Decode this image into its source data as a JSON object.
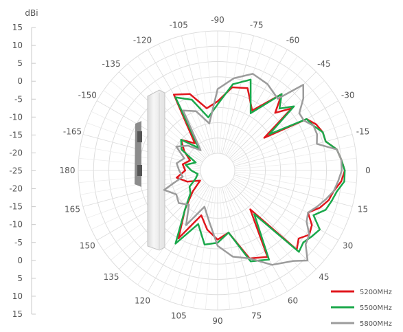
{
  "chart_data": {
    "type": "polar",
    "radial_axis": {
      "unit": "dBi",
      "tick_labels": [
        "15",
        "10",
        "5",
        "0",
        "-5",
        "-10",
        "-15",
        "-20",
        "-25",
        "-20",
        "-15",
        "-10",
        "-5",
        "0",
        "5",
        "10",
        "15"
      ],
      "range": [
        -25,
        15
      ],
      "step": 5
    },
    "angle_labels": [
      {
        "angle": -90,
        "label": "-90"
      },
      {
        "angle": -75,
        "label": "-75"
      },
      {
        "angle": -60,
        "label": "-60"
      },
      {
        "angle": -45,
        "label": "-45"
      },
      {
        "angle": -30,
        "label": "-30"
      },
      {
        "angle": -15,
        "label": "-15"
      },
      {
        "angle": 0,
        "label": "0"
      },
      {
        "angle": 15,
        "label": "15"
      },
      {
        "angle": 30,
        "label": "30"
      },
      {
        "angle": 45,
        "label": "45"
      },
      {
        "angle": 60,
        "label": "60"
      },
      {
        "angle": 75,
        "label": "75"
      },
      {
        "angle": 90,
        "label": "90"
      },
      {
        "angle": 105,
        "label": "105"
      },
      {
        "angle": 120,
        "label": "120"
      },
      {
        "angle": 135,
        "label": "135"
      },
      {
        "angle": 150,
        "label": "150"
      },
      {
        "angle": 165,
        "label": "165"
      },
      {
        "angle": 180,
        "label": "180"
      },
      {
        "angle": -165,
        "label": "-165"
      },
      {
        "angle": -150,
        "label": "-150"
      },
      {
        "angle": -135,
        "label": "-135"
      },
      {
        "angle": -120,
        "label": "-120"
      },
      {
        "angle": -105,
        "label": "-105"
      }
    ],
    "legend_position": "bottom-right",
    "grid": true,
    "series": [
      {
        "name": "5200MHz",
        "color": "#e0161c",
        "angles": [
          -180,
          -170,
          -160,
          -150,
          -140,
          -130,
          -120,
          -110,
          -100,
          -90,
          -80,
          -70,
          -60,
          -50,
          -45,
          -40,
          -35,
          -30,
          -25,
          -20,
          -15,
          -10,
          -5,
          0,
          5,
          10,
          15,
          20,
          25,
          30,
          35,
          40,
          45,
          50,
          60,
          70,
          80,
          90,
          100,
          110,
          120,
          130,
          140,
          150,
          160,
          170,
          180
        ],
        "values": [
          -20,
          -19,
          -21,
          -18,
          -15,
          -19,
          -2,
          -4,
          -10,
          -8,
          -3,
          -2,
          -8,
          2,
          -4,
          1,
          -12,
          3,
          5,
          6,
          6,
          9,
          10,
          11,
          10,
          8,
          7,
          5,
          2,
          5,
          6,
          4,
          6,
          -14,
          2,
          0,
          -10,
          -8,
          -11,
          -15,
          -5,
          -14,
          -20,
          -24,
          -20,
          -17,
          -20
        ]
      },
      {
        "name": "5500MHz",
        "color": "#1aa84b",
        "angles": [
          -180,
          -170,
          -160,
          -150,
          -140,
          -130,
          -120,
          -110,
          -100,
          -90,
          -80,
          -70,
          -60,
          -50,
          -45,
          -40,
          -35,
          -30,
          -25,
          -20,
          -15,
          -10,
          -5,
          0,
          5,
          10,
          15,
          20,
          25,
          30,
          35,
          40,
          45,
          50,
          60,
          70,
          80,
          90,
          100,
          110,
          120,
          130,
          140,
          150,
          160,
          170,
          180
        ],
        "values": [
          -22,
          -20,
          -23,
          -17,
          -15,
          -21,
          -3,
          -6,
          -13,
          -9,
          -2,
          1,
          -9,
          2,
          -2,
          2,
          -10,
          3,
          4,
          6,
          6,
          9,
          10,
          11,
          11,
          9,
          8,
          7,
          4,
          8,
          7,
          6,
          7,
          -12,
          3,
          1,
          -10,
          -7,
          -6,
          -12,
          -3,
          -14,
          -19,
          -20,
          -23,
          -24,
          -22
        ]
      },
      {
        "name": "5800MHz",
        "color": "#9c9c9c",
        "angles": [
          -180,
          -170,
          -160,
          -150,
          -140,
          -130,
          -120,
          -110,
          -100,
          -90,
          -80,
          -70,
          -60,
          -50,
          -45,
          -40,
          -35,
          -30,
          -25,
          -20,
          -15,
          -10,
          -5,
          0,
          5,
          10,
          15,
          20,
          25,
          30,
          35,
          40,
          45,
          50,
          60,
          70,
          80,
          90,
          100,
          110,
          120,
          130,
          140,
          150,
          160,
          170,
          180
        ],
        "values": [
          -18,
          -17,
          -19,
          -15,
          -18,
          -22,
          -8,
          -10,
          -15,
          -4,
          0,
          3,
          2,
          0,
          9,
          6,
          2,
          2,
          4,
          4,
          3,
          9,
          10,
          10,
          9,
          8,
          6,
          4,
          2,
          3,
          6,
          7,
          11,
          8,
          5,
          0,
          -2,
          -6,
          -14,
          -18,
          -10,
          -16,
          -14,
          -15,
          -12,
          -19,
          -18
        ]
      }
    ]
  }
}
